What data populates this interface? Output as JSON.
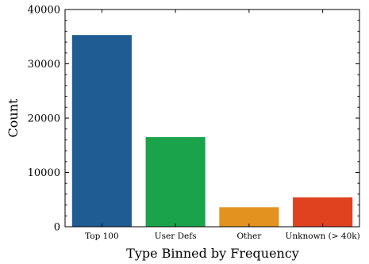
{
  "chart_data": {
    "type": "bar",
    "title": "",
    "xlabel": "Type Binned by Frequency",
    "ylabel": "Count",
    "ylim": [
      0,
      40000
    ],
    "yticks": [
      "0",
      "10000",
      "20000",
      "30000",
      "40000"
    ],
    "categories": [
      "Top 100",
      "User Defs",
      "Other",
      "Unknown (> 40k)"
    ],
    "values": [
      35300,
      16500,
      3600,
      5400
    ],
    "colors": [
      "#1f5c94",
      "#1aa34a",
      "#e39220",
      "#e04220"
    ],
    "grid": false,
    "legend": "none"
  }
}
